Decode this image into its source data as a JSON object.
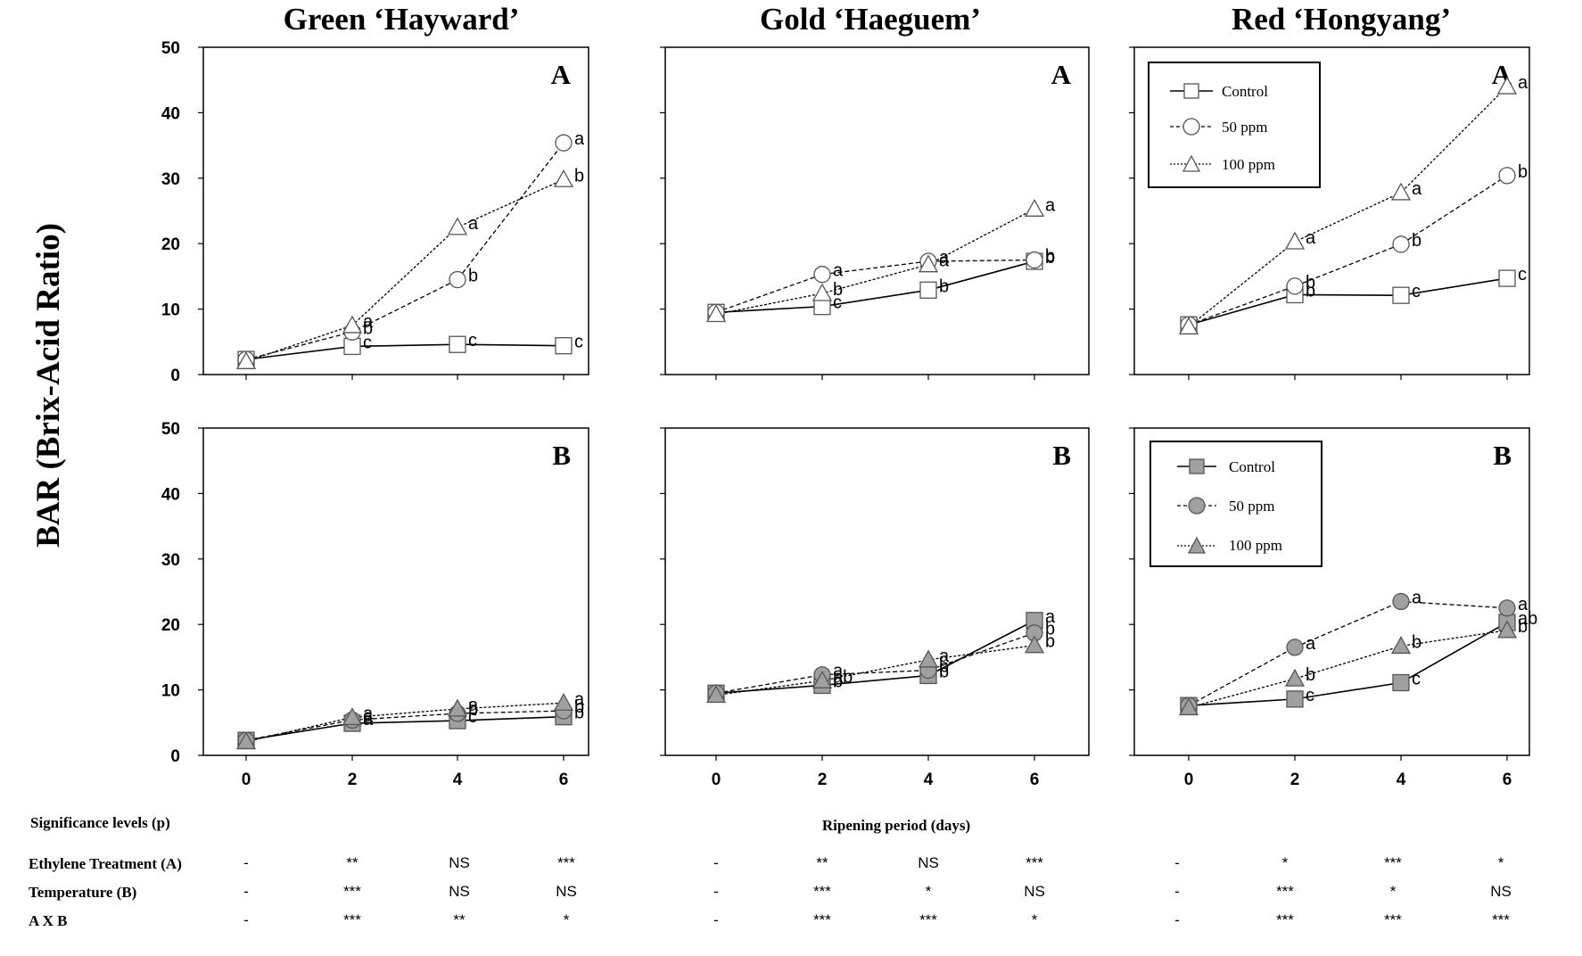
{
  "figure": {
    "ylabel": "BAR (Brix-Acid Ratio)",
    "xlabel": "Ripening period (days)",
    "significance_title": "Significance levels (p)"
  },
  "chart_data": [
    {
      "type": "line",
      "cultivar": "Green ‘Hayward’",
      "panel": "A",
      "x": [
        0,
        2,
        4,
        6
      ],
      "ylim": [
        0,
        50
      ],
      "series": [
        {
          "name": "Control",
          "values": [
            2.3,
            4.3,
            4.6,
            4.4
          ],
          "letters": [
            "",
            "c",
            "c",
            "c"
          ]
        },
        {
          "name": "50 ppm",
          "values": [
            2.3,
            6.5,
            14.5,
            35.4
          ],
          "letters": [
            "",
            "b",
            "b",
            "a"
          ]
        },
        {
          "name": "100 ppm",
          "values": [
            2.0,
            7.5,
            22.5,
            29.8
          ],
          "letters": [
            "",
            "a",
            "a",
            "b"
          ]
        }
      ]
    },
    {
      "type": "line",
      "cultivar": "Gold ‘Haeguem’",
      "panel": "A",
      "x": [
        0,
        2,
        4,
        6
      ],
      "ylim": [
        0,
        50
      ],
      "series": [
        {
          "name": "Control",
          "values": [
            9.5,
            10.4,
            12.9,
            17.3
          ],
          "letters": [
            "",
            "c",
            "b",
            "b"
          ]
        },
        {
          "name": "50 ppm",
          "values": [
            9.5,
            15.3,
            17.3,
            17.5
          ],
          "letters": [
            "",
            "a",
            "a",
            "b"
          ]
        },
        {
          "name": "100 ppm",
          "values": [
            9.2,
            12.4,
            16.8,
            25.3
          ],
          "letters": [
            "",
            "b",
            "a",
            "a"
          ]
        }
      ]
    },
    {
      "type": "line",
      "cultivar": "Red ‘Hongyang’",
      "panel": "A",
      "x": [
        0,
        2,
        4,
        6
      ],
      "ylim": [
        0,
        50
      ],
      "series": [
        {
          "name": "Control",
          "values": [
            7.6,
            12.2,
            12.1,
            14.7
          ],
          "letters": [
            "",
            "b",
            "c",
            "c"
          ]
        },
        {
          "name": "50 ppm",
          "values": [
            7.6,
            13.5,
            19.9,
            30.4
          ],
          "letters": [
            "",
            "b",
            "b",
            "b"
          ]
        },
        {
          "name": "100 ppm",
          "values": [
            7.3,
            20.3,
            27.8,
            44.0
          ],
          "letters": [
            "",
            "a",
            "a",
            "a"
          ]
        }
      ]
    },
    {
      "type": "line",
      "cultivar": "Green ‘Hayward’",
      "panel": "B",
      "x": [
        0,
        2,
        4,
        6
      ],
      "ylim": [
        0,
        50
      ],
      "series": [
        {
          "name": "Control",
          "values": [
            2.3,
            4.9,
            5.3,
            5.9
          ],
          "letters": [
            "",
            "a",
            "c",
            "b"
          ]
        },
        {
          "name": "50 ppm",
          "values": [
            2.3,
            5.4,
            6.4,
            6.8
          ],
          "letters": [
            "",
            "a",
            "b",
            "b"
          ]
        },
        {
          "name": "100 ppm",
          "values": [
            2.1,
            5.8,
            7.1,
            8.0
          ],
          "letters": [
            "",
            "a",
            "a",
            "a"
          ]
        }
      ]
    },
    {
      "type": "line",
      "cultivar": "Gold ‘Haeguem’",
      "panel": "B",
      "x": [
        0,
        2,
        4,
        6
      ],
      "ylim": [
        0,
        50
      ],
      "series": [
        {
          "name": "Control",
          "values": [
            9.5,
            10.7,
            12.2,
            20.6
          ],
          "letters": [
            "",
            "b",
            "b",
            "a"
          ]
        },
        {
          "name": "50 ppm",
          "values": [
            9.5,
            12.3,
            13.0,
            18.7
          ],
          "letters": [
            "",
            "a",
            "b",
            "b"
          ]
        },
        {
          "name": "100 ppm",
          "values": [
            9.2,
            11.4,
            14.6,
            16.8
          ],
          "letters": [
            "",
            "ab",
            "a",
            "b"
          ]
        }
      ]
    },
    {
      "type": "line",
      "cultivar": "Red ‘Hongyang’",
      "panel": "B",
      "x": [
        0,
        2,
        4,
        6
      ],
      "ylim": [
        0,
        50
      ],
      "series": [
        {
          "name": "Control",
          "values": [
            7.6,
            8.6,
            11.1,
            20.3
          ],
          "letters": [
            "",
            "c",
            "c",
            "ab"
          ]
        },
        {
          "name": "50 ppm",
          "values": [
            7.6,
            16.5,
            23.5,
            22.5
          ],
          "letters": [
            "",
            "a",
            "a",
            "a"
          ]
        },
        {
          "name": "100 ppm",
          "values": [
            7.3,
            11.7,
            16.7,
            19.1
          ],
          "letters": [
            "",
            "b",
            "b",
            "b"
          ]
        }
      ]
    }
  ],
  "significance": {
    "rows": [
      "Ethylene Treatment (A)",
      "Temperature (B)",
      "A X B"
    ],
    "values": [
      [
        [
          "-",
          "**",
          "NS",
          "***"
        ],
        [
          "-",
          "**",
          "NS",
          "***"
        ],
        [
          "-",
          "*",
          "***",
          "*"
        ]
      ],
      [
        [
          "-",
          "***",
          "NS",
          "NS"
        ],
        [
          "-",
          "***",
          "*",
          "NS"
        ],
        [
          "-",
          "***",
          "*",
          "NS"
        ]
      ],
      [
        [
          "-",
          "***",
          "**",
          "*"
        ],
        [
          "-",
          "***",
          "***",
          "*"
        ],
        [
          "-",
          "***",
          "***",
          "***"
        ]
      ]
    ]
  }
}
